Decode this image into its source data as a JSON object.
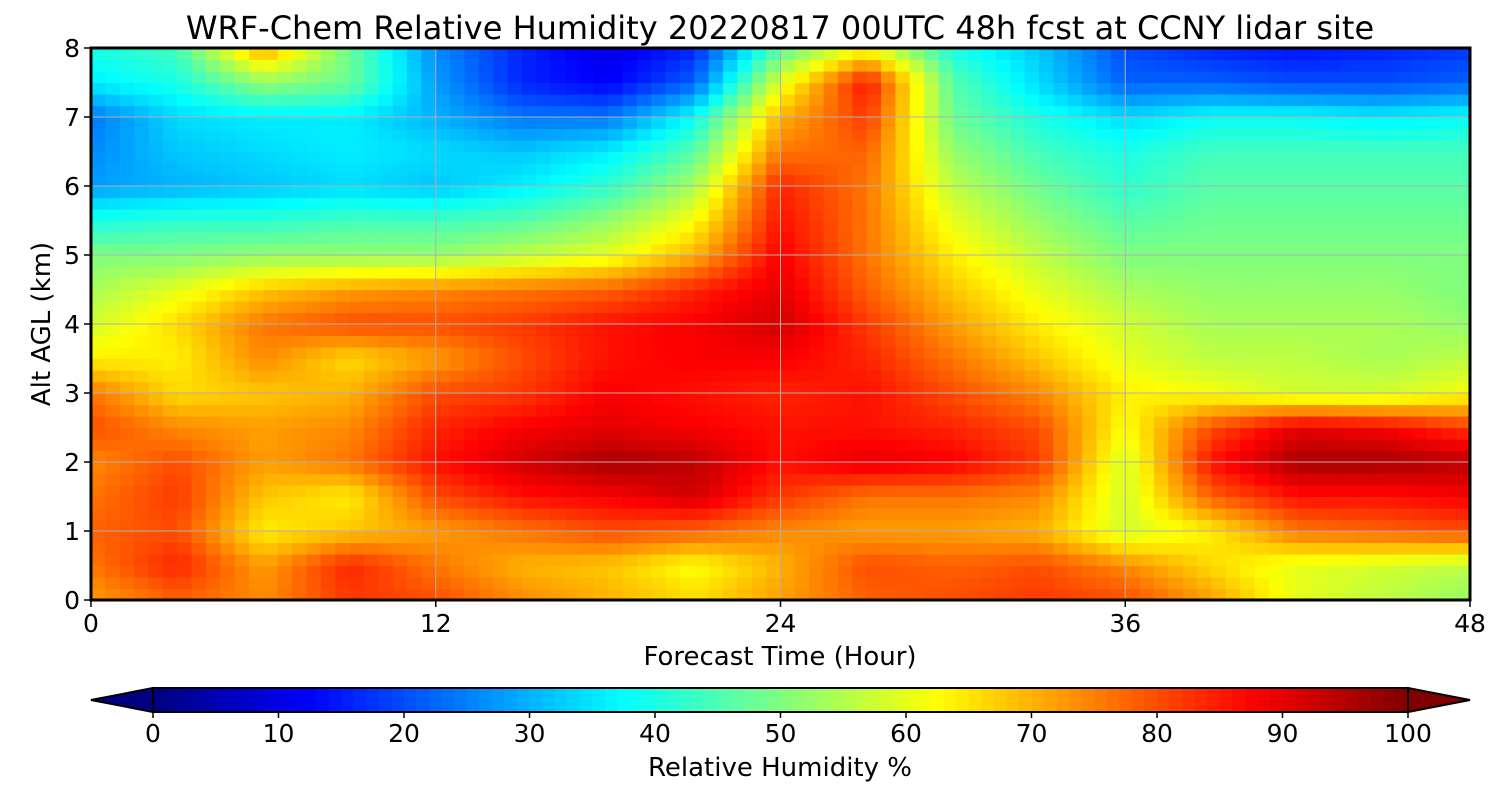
{
  "chart_data": {
    "type": "heatmap",
    "title": "WRF-Chem Relative Humidity 20220817 00UTC 48h fcst at CCNY lidar site",
    "xlabel": "Forecast Time (Hour)",
    "ylabel": "Alt AGL (km)",
    "xlim": [
      0,
      48
    ],
    "ylim": [
      0,
      8
    ],
    "xticks": [
      "0",
      "12",
      "24",
      "36",
      "48"
    ],
    "yticks": [
      "0",
      "1",
      "2",
      "3",
      "4",
      "5",
      "6",
      "7",
      "8"
    ],
    "grid": true,
    "colormap": "jet",
    "colorbar": {
      "label": "Relative Humidity %",
      "range": [
        0,
        100
      ],
      "ticks": [
        "0",
        "10",
        "20",
        "30",
        "40",
        "50",
        "60",
        "70",
        "80",
        "90",
        "100"
      ],
      "extend": "both"
    },
    "x": [
      0,
      3,
      6,
      9,
      12,
      15,
      18,
      21,
      24,
      27,
      30,
      33,
      36,
      39,
      42,
      45,
      48
    ],
    "y": [
      0,
      0.5,
      1,
      1.5,
      2,
      2.5,
      3,
      3.5,
      4,
      4.5,
      5,
      5.5,
      6,
      6.5,
      7,
      7.5,
      8
    ],
    "z": [
      [
        72,
        78,
        74,
        82,
        80,
        74,
        70,
        66,
        72,
        78,
        80,
        82,
        80,
        72,
        60,
        56,
        52
      ],
      [
        76,
        84,
        72,
        84,
        76,
        70,
        68,
        62,
        70,
        80,
        78,
        80,
        74,
        66,
        60,
        58,
        56
      ],
      [
        78,
        80,
        64,
        68,
        72,
        76,
        80,
        78,
        74,
        72,
        72,
        70,
        58,
        64,
        76,
        78,
        80
      ],
      [
        76,
        82,
        68,
        64,
        80,
        86,
        88,
        92,
        82,
        76,
        76,
        74,
        58,
        78,
        86,
        86,
        88
      ],
      [
        74,
        80,
        72,
        76,
        86,
        92,
        96,
        94,
        86,
        90,
        88,
        82,
        58,
        86,
        96,
        96,
        94
      ],
      [
        80,
        74,
        72,
        74,
        84,
        88,
        90,
        88,
        86,
        86,
        84,
        80,
        62,
        80,
        90,
        88,
        82
      ],
      [
        76,
        66,
        68,
        70,
        80,
        82,
        88,
        86,
        84,
        86,
        80,
        74,
        64,
        62,
        58,
        58,
        62
      ],
      [
        64,
        64,
        74,
        66,
        72,
        80,
        86,
        88,
        88,
        84,
        76,
        68,
        60,
        56,
        56,
        54,
        56
      ],
      [
        58,
        66,
        76,
        80,
        80,
        82,
        86,
        88,
        92,
        82,
        72,
        64,
        58,
        54,
        54,
        54,
        52
      ],
      [
        54,
        60,
        68,
        72,
        74,
        76,
        78,
        84,
        90,
        78,
        68,
        60,
        54,
        52,
        52,
        52,
        50
      ],
      [
        50,
        50,
        52,
        52,
        52,
        56,
        60,
        70,
        88,
        76,
        64,
        56,
        50,
        50,
        50,
        50,
        50
      ],
      [
        40,
        42,
        42,
        44,
        44,
        46,
        52,
        62,
        86,
        76,
        60,
        52,
        46,
        48,
        48,
        48,
        48
      ],
      [
        28,
        30,
        32,
        34,
        32,
        36,
        42,
        54,
        84,
        76,
        56,
        48,
        42,
        46,
        46,
        46,
        46
      ],
      [
        26,
        32,
        34,
        36,
        34,
        32,
        36,
        46,
        76,
        78,
        52,
        44,
        40,
        44,
        44,
        44,
        44
      ],
      [
        24,
        34,
        36,
        36,
        30,
        24,
        24,
        38,
        70,
        82,
        48,
        40,
        34,
        38,
        38,
        36,
        38
      ],
      [
        36,
        40,
        52,
        48,
        28,
        16,
        12,
        22,
        60,
        86,
        46,
        34,
        22,
        22,
        20,
        20,
        22
      ],
      [
        40,
        44,
        72,
        48,
        26,
        16,
        10,
        16,
        46,
        62,
        40,
        32,
        20,
        16,
        14,
        16,
        18
      ]
    ]
  }
}
